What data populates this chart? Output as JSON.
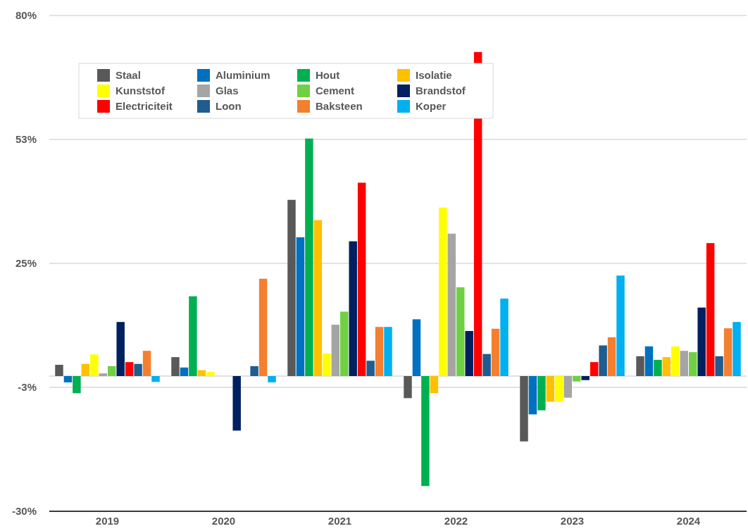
{
  "chart_data": {
    "type": "bar",
    "categories": [
      "2019",
      "2020",
      "2021",
      "2022",
      "2023",
      "2024"
    ],
    "series": [
      {
        "name": "Staal",
        "color": "#595959",
        "values": [
          2.5,
          4.2,
          39.1,
          -4.9,
          -14.5,
          4.4
        ]
      },
      {
        "name": "Aluminium",
        "color": "#0070c0",
        "values": [
          -1.4,
          1.9,
          30.8,
          12.6,
          -8.5,
          6.6
        ]
      },
      {
        "name": "Hout",
        "color": "#00b050",
        "values": [
          -3.8,
          17.7,
          52.7,
          -24.4,
          -7.6,
          3.6
        ]
      },
      {
        "name": "Isolatie",
        "color": "#ffc000",
        "values": [
          2.7,
          1.3,
          34.6,
          -3.8,
          -5.7,
          4.2
        ]
      },
      {
        "name": "Kunststof",
        "color": "#ffff00",
        "values": [
          4.8,
          0.9,
          5.0,
          37.4,
          -5.7,
          6.6
        ]
      },
      {
        "name": "Glas",
        "color": "#a5a5a5",
        "values": [
          0.6,
          null,
          11.4,
          31.6,
          -4.8,
          5.6
        ]
      },
      {
        "name": "Cement",
        "color": "#70d044",
        "values": [
          2.2,
          null,
          14.3,
          19.7,
          -1.2,
          5.3
        ]
      },
      {
        "name": "Brandstof",
        "color": "#002060",
        "values": [
          12.0,
          -12.1,
          29.9,
          10.0,
          -0.9,
          15.2
        ]
      },
      {
        "name": "Electriciteit",
        "color": "#ff0000",
        "values": [
          3.1,
          null,
          42.9,
          71.9,
          3.1,
          29.5
        ]
      },
      {
        "name": "Loon",
        "color": "#1f5c8f",
        "values": [
          2.7,
          2.2,
          3.4,
          4.9,
          6.8,
          4.4
        ]
      },
      {
        "name": "Baksteen",
        "color": "#f47f2f",
        "values": [
          5.6,
          21.6,
          10.9,
          10.5,
          8.6,
          10.6
        ]
      },
      {
        "name": "Koper",
        "color": "#00b0f0",
        "values": [
          -1.3,
          -1.4,
          10.9,
          17.2,
          22.3,
          12.0
        ]
      }
    ],
    "ylim": [
      -30,
      80
    ],
    "yticks": [
      {
        "value": 80,
        "label": "80%"
      },
      {
        "value": 52.5,
        "label": "53%"
      },
      {
        "value": 25,
        "label": "25%"
      },
      {
        "value": 0,
        "label": null
      },
      {
        "value": -2.5,
        "label": "-3%"
      },
      {
        "value": -30,
        "label": "-30%"
      }
    ],
    "grid": "y",
    "legend": "top left"
  }
}
